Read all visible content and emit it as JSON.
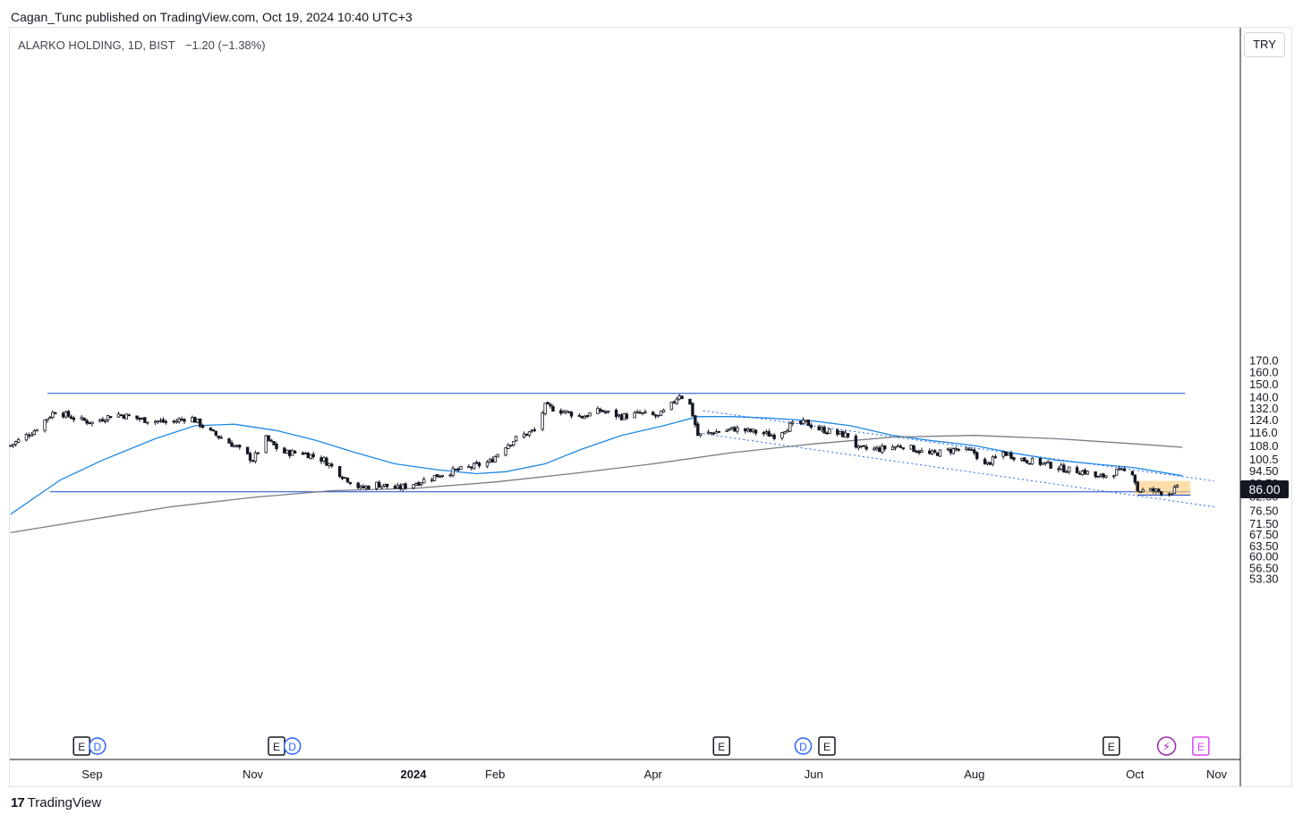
{
  "header": {
    "publisher_line": "Cagan_Tunc published on TradingView.com, Oct 19, 2024 10:40 UTC+3"
  },
  "legend": {
    "symbol": "ALARKO HOLDING, 1D, BIST",
    "change": "−1.20 (−1.38%)"
  },
  "currency_button": "TRY",
  "last_price_label": "86.00",
  "footer": {
    "brand": "TradingView",
    "logo_mark": "17"
  },
  "colors": {
    "candle": "#131722",
    "ma_fast": "#1e88e5",
    "ma_slow": "#787b86",
    "level_lines": "#1848cc",
    "channel": "#2962ff",
    "box_fill": "#ffcc80",
    "earnings_icon": "#131722",
    "dividend_icon": "#2962ff",
    "upcoming_earnings_icon": "#e040fb",
    "flash_icon": "#9c27b0"
  },
  "chart_data": {
    "type": "candlestick",
    "timeframe": "1D",
    "y_scale": "log",
    "ylim": [
      53.3,
      185
    ],
    "y_ticks": [
      "170.0",
      "160.0",
      "150.0",
      "140.0",
      "132.0",
      "124.0",
      "116.0",
      "108.0",
      "100.5",
      "94.50",
      "88.50",
      "82.50",
      "76.50",
      "71.50",
      "67.50",
      "63.50",
      "60.00",
      "56.50",
      "53.30"
    ],
    "x_ticks": [
      {
        "label": "Sep",
        "date": "2023-09-01"
      },
      {
        "label": "Nov",
        "date": "2023-11-01"
      },
      {
        "label": "2024",
        "date": "2024-01-01",
        "bold": true
      },
      {
        "label": "Feb",
        "date": "2024-02-01"
      },
      {
        "label": "Apr",
        "date": "2024-04-01"
      },
      {
        "label": "Jun",
        "date": "2024-06-01"
      },
      {
        "label": "Aug",
        "date": "2024-08-01"
      },
      {
        "label": "Oct",
        "date": "2024-10-01"
      },
      {
        "label": "Nov",
        "date": "2024-11-01"
      }
    ],
    "price_path": [
      [
        "2023-08-01",
        108
      ],
      [
        "2023-08-10",
        117
      ],
      [
        "2023-08-18",
        130
      ],
      [
        "2023-08-25",
        125
      ],
      [
        "2023-09-01",
        122
      ],
      [
        "2023-09-10",
        128
      ],
      [
        "2023-09-20",
        124
      ],
      [
        "2023-10-01",
        122
      ],
      [
        "2023-10-08",
        126
      ],
      [
        "2023-10-16",
        116
      ],
      [
        "2023-10-25",
        108
      ],
      [
        "2023-11-01",
        100
      ],
      [
        "2023-11-06",
        112
      ],
      [
        "2023-11-12",
        104
      ],
      [
        "2023-11-20",
        104
      ],
      [
        "2023-11-28",
        100
      ],
      [
        "2023-12-05",
        92
      ],
      [
        "2023-12-12",
        86
      ],
      [
        "2023-12-18",
        88
      ],
      [
        "2023-12-26",
        86
      ],
      [
        "2024-01-03",
        89
      ],
      [
        "2024-01-12",
        93
      ],
      [
        "2024-01-22",
        96
      ],
      [
        "2024-01-30",
        99
      ],
      [
        "2024-02-05",
        108
      ],
      [
        "2024-02-10",
        113
      ],
      [
        "2024-02-16",
        117
      ],
      [
        "2024-02-20",
        133
      ],
      [
        "2024-02-26",
        130
      ],
      [
        "2024-03-05",
        126
      ],
      [
        "2024-03-12",
        130
      ],
      [
        "2024-03-20",
        126
      ],
      [
        "2024-03-27",
        128
      ],
      [
        "2024-04-03",
        126
      ],
      [
        "2024-04-08",
        134
      ],
      [
        "2024-04-11",
        142
      ],
      [
        "2024-04-15",
        134
      ],
      [
        "2024-04-18",
        114
      ],
      [
        "2024-04-24",
        116
      ],
      [
        "2024-05-02",
        118
      ],
      [
        "2024-05-10",
        116
      ],
      [
        "2024-05-17",
        114
      ],
      [
        "2024-05-23",
        120
      ],
      [
        "2024-05-29",
        122
      ],
      [
        "2024-06-03",
        118
      ],
      [
        "2024-06-10",
        115
      ],
      [
        "2024-06-14",
        114
      ],
      [
        "2024-06-18",
        106
      ],
      [
        "2024-06-26",
        106
      ],
      [
        "2024-07-05",
        108
      ],
      [
        "2024-07-15",
        103
      ],
      [
        "2024-07-25",
        106
      ],
      [
        "2024-08-01",
        104
      ],
      [
        "2024-08-05",
        97
      ],
      [
        "2024-08-12",
        104
      ],
      [
        "2024-08-20",
        100
      ],
      [
        "2024-08-28",
        98
      ],
      [
        "2024-09-05",
        95
      ],
      [
        "2024-09-12",
        94
      ],
      [
        "2024-09-17",
        91
      ],
      [
        "2024-09-24",
        94
      ],
      [
        "2024-09-30",
        94
      ],
      [
        "2024-10-02",
        85
      ],
      [
        "2024-10-08",
        85
      ],
      [
        "2024-10-14",
        84
      ],
      [
        "2024-10-17",
        86
      ]
    ],
    "series": [
      {
        "type": "ma",
        "color_key": "ma_fast",
        "points": [
          [
            "2023-08-01",
            75
          ],
          [
            "2023-08-20",
            90
          ],
          [
            "2023-09-05",
            100
          ],
          [
            "2023-09-25",
            112
          ],
          [
            "2023-10-10",
            120
          ],
          [
            "2023-10-25",
            121
          ],
          [
            "2023-11-10",
            117
          ],
          [
            "2023-11-25",
            111
          ],
          [
            "2023-12-10",
            104
          ],
          [
            "2023-12-25",
            98
          ],
          [
            "2024-01-10",
            95
          ],
          [
            "2024-01-25",
            93
          ],
          [
            "2024-02-05",
            94
          ],
          [
            "2024-02-20",
            98
          ],
          [
            "2024-03-05",
            106
          ],
          [
            "2024-03-20",
            114
          ],
          [
            "2024-04-05",
            120
          ],
          [
            "2024-04-18",
            126
          ],
          [
            "2024-05-01",
            126
          ],
          [
            "2024-05-15",
            125
          ],
          [
            "2024-06-01",
            123
          ],
          [
            "2024-06-15",
            120
          ],
          [
            "2024-07-01",
            114
          ],
          [
            "2024-07-15",
            111
          ],
          [
            "2024-08-01",
            108
          ],
          [
            "2024-08-15",
            104
          ],
          [
            "2024-09-01",
            100
          ],
          [
            "2024-09-15",
            98
          ],
          [
            "2024-10-01",
            96
          ],
          [
            "2024-10-19",
            92
          ]
        ]
      },
      {
        "type": "ma",
        "color_key": "ma_slow",
        "points": [
          [
            "2023-08-01",
            68
          ],
          [
            "2023-09-01",
            73
          ],
          [
            "2023-10-01",
            78
          ],
          [
            "2023-11-01",
            82
          ],
          [
            "2023-12-01",
            85
          ],
          [
            "2024-01-01",
            86
          ],
          [
            "2024-02-01",
            89
          ],
          [
            "2024-03-01",
            93
          ],
          [
            "2024-04-01",
            98
          ],
          [
            "2024-05-01",
            104
          ],
          [
            "2024-06-01",
            109
          ],
          [
            "2024-07-01",
            113
          ],
          [
            "2024-08-01",
            114
          ],
          [
            "2024-09-01",
            112
          ],
          [
            "2024-10-01",
            109
          ],
          [
            "2024-10-19",
            107
          ]
        ]
      }
    ],
    "drawings": {
      "resistance": {
        "price": 142.5,
        "from": "2023-08-15",
        "to": "2024-10-20"
      },
      "support": {
        "price": 84.5,
        "from": "2023-08-16",
        "to": "2024-10-22"
      },
      "channel_upper": [
        [
          "2024-04-20",
          130
        ],
        [
          "2024-10-31",
          89.5
        ]
      ],
      "channel_lower": [
        [
          "2024-04-20",
          115
        ],
        [
          "2024-10-31",
          78
        ]
      ],
      "range_box": {
        "from": "2024-10-01",
        "to": "2024-10-22",
        "low": 83,
        "high": 89.5
      },
      "box_low_line": {
        "price": 83,
        "from": "2024-10-02",
        "to": "2024-10-22"
      }
    },
    "events": [
      {
        "date": "2023-08-28",
        "type": "E"
      },
      {
        "date": "2023-09-03",
        "type": "D"
      },
      {
        "date": "2023-11-10",
        "type": "E"
      },
      {
        "date": "2023-11-16",
        "type": "D"
      },
      {
        "date": "2024-04-27",
        "type": "E"
      },
      {
        "date": "2024-05-28",
        "type": "D"
      },
      {
        "date": "2024-06-06",
        "type": "E"
      },
      {
        "date": "2024-09-22",
        "type": "E"
      },
      {
        "date": "2024-10-13",
        "type": "flash"
      },
      {
        "date": "2024-10-26",
        "type": "E-upcoming"
      }
    ]
  }
}
